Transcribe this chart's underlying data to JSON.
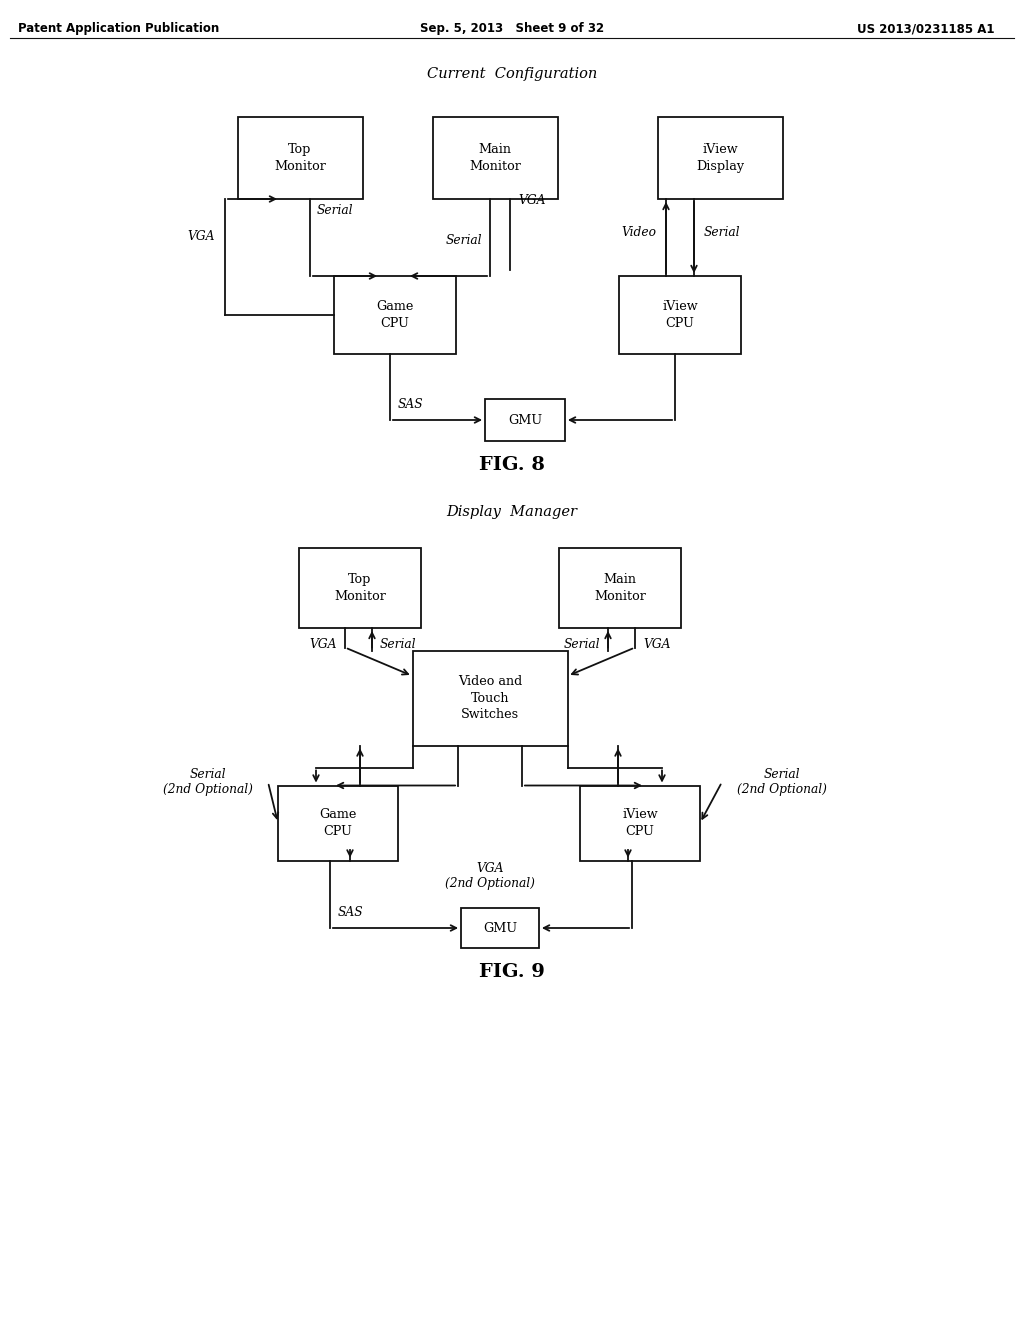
{
  "header_left": "Patent Application Publication",
  "header_center": "Sep. 5, 2013   Sheet 9 of 32",
  "header_right": "US 2013/0231185 A1",
  "fig8_title": "Current  Configuration",
  "fig9_title": "Display  Manager",
  "fig8_label": "FIG. 8",
  "fig9_label": "FIG. 9",
  "bg": "#ffffff",
  "lc": "#111111"
}
